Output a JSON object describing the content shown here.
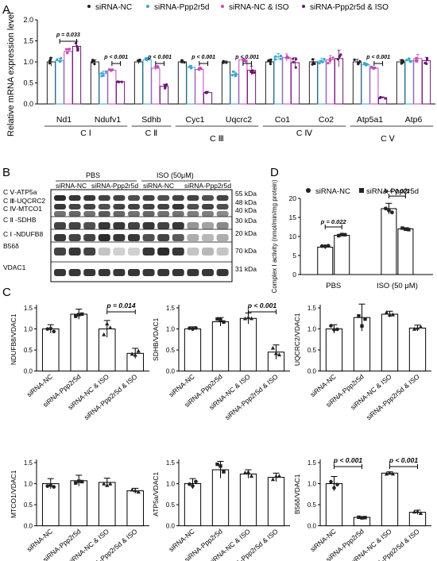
{
  "panel_labels": [
    "A",
    "B",
    "C",
    "D"
  ],
  "colors": {
    "nc": "#222222",
    "ppp": "#3aa5cf",
    "nciso": "#c24ab5",
    "pppiso": "#6a1670",
    "black": "#000000"
  },
  "panel_a": {
    "ylabel": "Relative mRNA expression level",
    "yticks": [
      "0.0",
      "0.5",
      "1.0",
      "1.5",
      "2.0"
    ],
    "legend": [
      "siRNA-NC",
      "siRNA-Ppp2r5d",
      "siRNA-NC & ISO",
      "siRNA-Ppp2r5d & ISO"
    ],
    "complex_labels": [
      "C Ⅰ",
      "C Ⅱ",
      "C Ⅲ",
      "C Ⅳ",
      "C Ⅴ"
    ],
    "sig": [
      {
        "gene": "Nd1",
        "text": "p = 0.033"
      },
      {
        "gene": "Ndufv1",
        "text": "p < 0.001"
      },
      {
        "gene": "Sdhb",
        "text": "p < 0.001"
      },
      {
        "gene": "Cyc1",
        "text": "p < 0.001"
      },
      {
        "gene": "Uqcrc2",
        "text": "p < 0.001"
      },
      {
        "gene": "Atp5a1",
        "text": "p < 0.001"
      }
    ]
  },
  "panel_b": {
    "group_labels": [
      "PBS",
      "ISO (50μM)"
    ],
    "lane_labels": [
      "siRNA-NC",
      "siRNA-Ppp2r5d",
      "siRNA-NC",
      "siRNA-Ppp2r5d"
    ],
    "left_labels": [
      "C Ⅴ-ATP5a",
      "C Ⅲ-UQCRC2",
      "C Ⅳ-MTCO1",
      "C Ⅱ -SDHB",
      "C Ⅰ -NDUFB8",
      "B56δ",
      "VDAC1"
    ],
    "kda": [
      "55 kDa",
      "48 kDa",
      "40 kDa",
      "30 kDa",
      "20 kDa",
      "70 kDa",
      "31 kDa"
    ]
  },
  "panel_c": {
    "xlabels": [
      "siRNA-NC",
      "siRNA-Ppp2r5d",
      "siRNA-NC & ISO",
      "siRNA-Ppp2r5d & ISO"
    ],
    "yticks": [
      "0.0",
      "0.5",
      "1.0",
      "1.5"
    ],
    "plots": [
      {
        "ylabel": "NDUFB8/VDAC1",
        "sig": [
          {
            "text": "p = 0.014"
          }
        ]
      },
      {
        "ylabel": "SDHB/VDAC1",
        "sig": [
          {
            "text": "p < 0.001"
          }
        ]
      },
      {
        "ylabel": "UQCRC2/VDAC1",
        "sig": []
      },
      {
        "ylabel": "MTCO1/VDAC1",
        "sig": []
      },
      {
        "ylabel": "ATP5a/VDAC1",
        "sig": []
      },
      {
        "ylabel": "B56δ/VDAC1",
        "sig": [
          {
            "text": "p < 0.001"
          },
          {
            "text": "p < 0.001"
          }
        ]
      }
    ]
  },
  "panel_d": {
    "ylabel": "Complex Ⅰ activity (nmol/min/mg protein)",
    "yticks": [
      "0",
      "5",
      "10",
      "15",
      "20"
    ],
    "xlabels": [
      "PBS",
      "ISO (50 μM)"
    ],
    "legend": [
      "siRNA-NC",
      "siRNA-Ppp2r5d"
    ],
    "sig": [
      "p = 0.022",
      "p < 0.001"
    ]
  },
  "chart_data": [
    {
      "panel": "A",
      "type": "bar",
      "ylabel": "Relative mRNA expression level",
      "ylim": [
        0,
        2.0
      ],
      "categories": [
        "Nd1",
        "Ndufv1",
        "Sdhb",
        "Cyc1",
        "Uqcrc2",
        "Co1",
        "Co2",
        "Atp5a1",
        "Atp6"
      ],
      "series": [
        {
          "name": "siRNA-NC",
          "values": [
            1.0,
            1.0,
            1.0,
            1.0,
            1.0,
            1.0,
            1.0,
            1.0,
            1.0
          ],
          "errors": [
            0.1,
            0.05,
            0.05,
            0.04,
            0.02,
            0.06,
            0.07,
            0.06,
            0.05
          ]
        },
        {
          "name": "siRNA-Ppp2r5d",
          "values": [
            1.03,
            0.72,
            1.05,
            0.87,
            0.7,
            1.12,
            1.02,
            0.93,
            1.03
          ],
          "errors": [
            0.06,
            0.06,
            0.05,
            0.05,
            0.07,
            0.08,
            0.06,
            0.04,
            0.06
          ]
        },
        {
          "name": "siRNA-NC & ISO",
          "values": [
            1.25,
            0.8,
            0.85,
            0.82,
            1.05,
            1.1,
            1.05,
            0.85,
            1.08
          ],
          "errors": [
            0.07,
            0.03,
            0.05,
            0.04,
            0.04,
            0.09,
            0.1,
            0.03,
            0.1
          ]
        },
        {
          "name": "siRNA-Ppp2r5d & ISO",
          "values": [
            1.37,
            0.53,
            0.42,
            0.27,
            0.8,
            0.98,
            1.08,
            0.15,
            1.03
          ],
          "errors": [
            0.12,
            0.01,
            0.05,
            0.03,
            0.1,
            0.12,
            0.2,
            0.02,
            0.08
          ]
        }
      ]
    },
    {
      "panel": "C",
      "type": "bar",
      "ylabel": "NDUFB8/VDAC1",
      "ylim": [
        0,
        1.5
      ],
      "categories": [
        "siRNA-NC",
        "siRNA-Ppp2r5d",
        "siRNA-NC & ISO",
        "siRNA-Ppp2r5d & ISO"
      ],
      "values": [
        1.0,
        1.35,
        1.0,
        0.42
      ],
      "errors": [
        0.1,
        0.12,
        0.2,
        0.12
      ]
    },
    {
      "panel": "C",
      "type": "bar",
      "ylabel": "SDHB/VDAC1",
      "ylim": [
        0,
        1.5
      ],
      "categories": [
        "siRNA-NC",
        "siRNA-Ppp2r5d",
        "siRNA-NC & ISO",
        "siRNA-Ppp2r5d & ISO"
      ],
      "values": [
        1.0,
        1.17,
        1.25,
        0.45
      ],
      "errors": [
        0.05,
        0.1,
        0.13,
        0.17
      ]
    },
    {
      "panel": "C",
      "type": "bar",
      "ylabel": "UQCRC2/VDAC1",
      "ylim": [
        0,
        1.5
      ],
      "categories": [
        "siRNA-NC",
        "siRNA-Ppp2r5d",
        "siRNA-NC & ISO",
        "siRNA-Ppp2r5d & ISO"
      ],
      "values": [
        1.0,
        1.27,
        1.35,
        1.02
      ],
      "errors": [
        0.1,
        0.32,
        0.07,
        0.07
      ]
    },
    {
      "panel": "C",
      "type": "bar",
      "ylabel": "MTCO1/VDAC1",
      "ylim": [
        0,
        1.5
      ],
      "categories": [
        "siRNA-NC",
        "siRNA-Ppp2r5d",
        "siRNA-NC & ISO",
        "siRNA-Ppp2r5d & ISO"
      ],
      "values": [
        1.0,
        1.07,
        1.03,
        0.83
      ],
      "errors": [
        0.12,
        0.13,
        0.1,
        0.06
      ]
    },
    {
      "panel": "C",
      "type": "bar",
      "ylabel": "ATP5a/VDAC1",
      "ylim": [
        0,
        1.5
      ],
      "categories": [
        "siRNA-NC",
        "siRNA-Ppp2r5d",
        "siRNA-NC & ISO",
        "siRNA-Ppp2r5d & ISO"
      ],
      "values": [
        1.0,
        1.33,
        1.23,
        1.15
      ],
      "errors": [
        0.12,
        0.2,
        0.1,
        0.1
      ]
    },
    {
      "panel": "C",
      "type": "bar",
      "ylabel": "B56δ/VDAC1",
      "ylim": [
        0,
        1.5
      ],
      "categories": [
        "siRNA-NC",
        "siRNA-Ppp2r5d",
        "siRNA-NC & ISO",
        "siRNA-Ppp2r5d & ISO"
      ],
      "values": [
        1.0,
        0.2,
        1.25,
        0.32
      ],
      "errors": [
        0.17,
        0.02,
        0.03,
        0.05
      ]
    },
    {
      "panel": "D",
      "type": "bar",
      "ylabel": "Complex Ⅰ activity (nmol/min/mg protein)",
      "ylim": [
        0,
        20
      ],
      "categories": [
        "PBS",
        "ISO (50 μM)"
      ],
      "series": [
        {
          "name": "siRNA-NC",
          "values": [
            7.2,
            17.3
          ],
          "errors": [
            0.5,
            1.4
          ]
        },
        {
          "name": "siRNA-Ppp2r5d",
          "values": [
            10.3,
            12.0
          ],
          "errors": [
            0.3,
            0.3
          ]
        }
      ]
    }
  ]
}
